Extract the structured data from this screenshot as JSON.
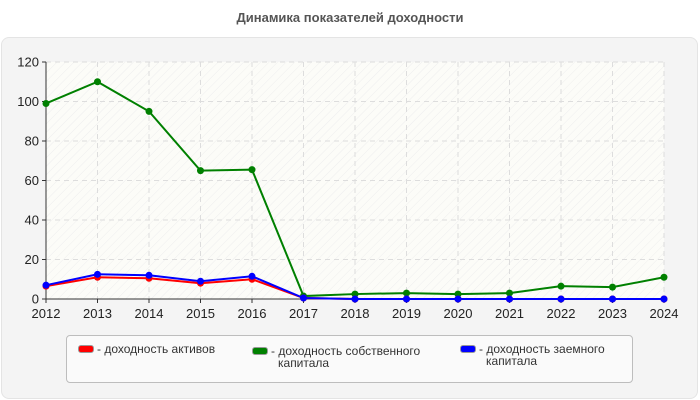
{
  "title": "Динамика показателей доходности",
  "chart_data": {
    "type": "line",
    "title": "Динамика показателей доходности",
    "xlabel": "",
    "ylabel": "",
    "x": [
      "2012",
      "2013",
      "2014",
      "2015",
      "2016",
      "2017",
      "2018",
      "2019",
      "2020",
      "2021",
      "2022",
      "2023",
      "2024"
    ],
    "yticks": [
      "0",
      "20",
      "40",
      "60",
      "80",
      "100",
      "120"
    ],
    "ylim": [
      0,
      120
    ],
    "grid": true,
    "legend_position": "bottom",
    "series": [
      {
        "name": "- доходность активов",
        "color": "#ff0000",
        "values": [
          6.5,
          11,
          10.5,
          8,
          10,
          0.5,
          0,
          0,
          0,
          0,
          0,
          0,
          0
        ]
      },
      {
        "name": "- доходность собственного капитала",
        "color": "#008000",
        "values": [
          99,
          110,
          95,
          65,
          65.5,
          1.5,
          2.5,
          3,
          2.5,
          3,
          6.5,
          6,
          11
        ]
      },
      {
        "name": "- доходность заемного капитала",
        "color": "#0000ff",
        "values": [
          7,
          12.5,
          12,
          9,
          11.5,
          0.5,
          0,
          0,
          0,
          0,
          0,
          0,
          0
        ]
      }
    ]
  },
  "legend": {
    "items": [
      {
        "label_line1": "- доходность активов",
        "label_line2": "",
        "color": "#ff0000"
      },
      {
        "label_line1": "- доходность собственного",
        "label_line2": "капитала",
        "color": "#008000"
      },
      {
        "label_line1": "- доходность заемного",
        "label_line2": "капитала",
        "color": "#0000ff"
      }
    ]
  }
}
